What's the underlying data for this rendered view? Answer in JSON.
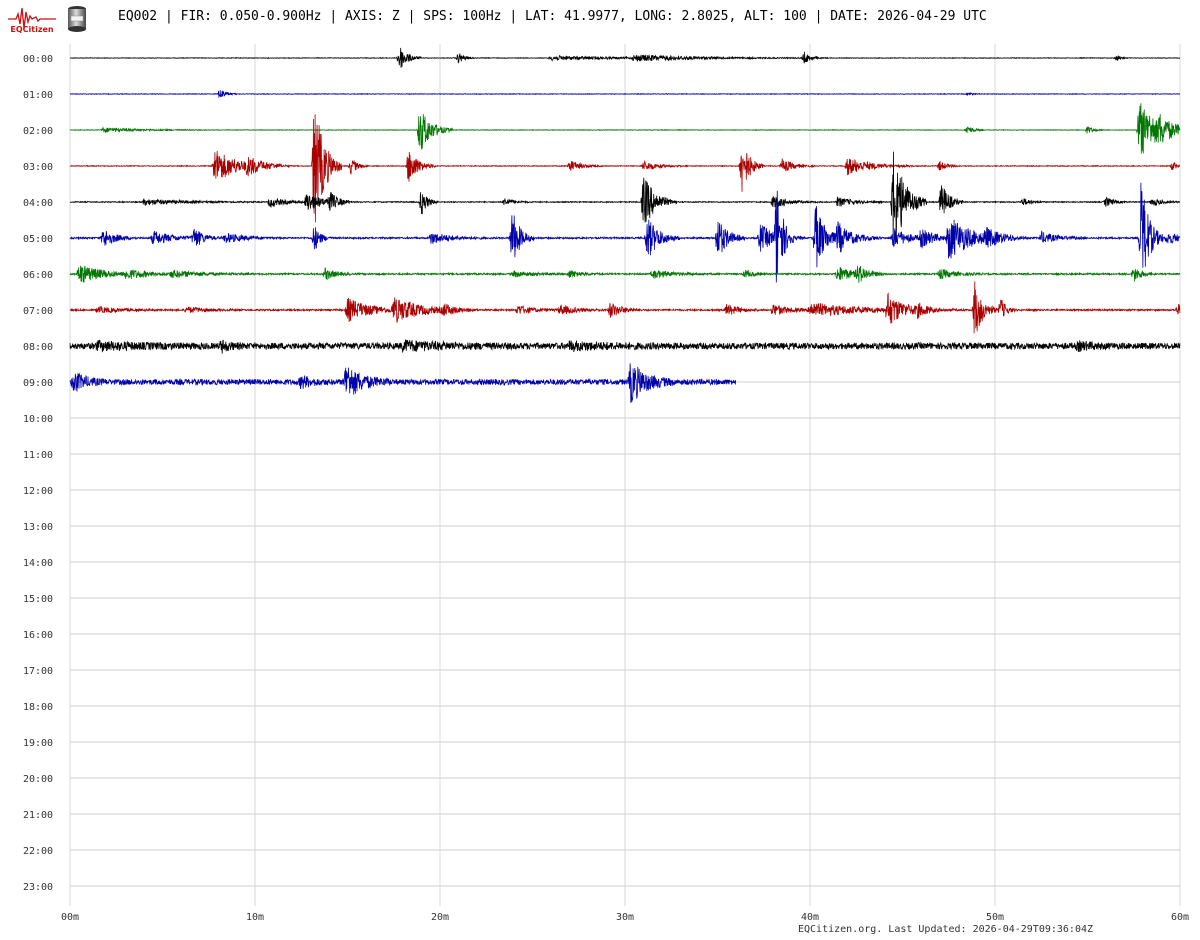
{
  "header": {
    "logo_text": "EQCitizen",
    "title": "EQ002 | FIR: 0.050-0.900Hz | AXIS: Z | SPS: 100Hz | LAT: 41.9977, LONG: 2.8025, ALT: 100 | DATE: 2026-04-29 UTC"
  },
  "footer": {
    "note": "EQCitizen.org. Last Updated: 2026-04-29T09:36:04Z"
  },
  "colors": {
    "background": "#ffffff",
    "grid": "#d8d8d8",
    "baseline": "#cccccc",
    "trace_cycle": [
      "#000000",
      "#0000aa",
      "#007700",
      "#aa0000"
    ],
    "logo": "#cc1111"
  },
  "chart_data": {
    "type": "line",
    "title": "",
    "xlabel": "",
    "ylabel": "",
    "x_unit": "minutes",
    "xlim": [
      0,
      60
    ],
    "x_ticks": [
      0,
      10,
      20,
      30,
      40,
      50,
      60
    ],
    "x_tick_labels": [
      "00m",
      "10m",
      "20m",
      "30m",
      "40m",
      "50m",
      "60m"
    ],
    "rows": [
      "00:00",
      "01:00",
      "02:00",
      "03:00",
      "04:00",
      "05:00",
      "06:00",
      "07:00",
      "08:00",
      "09:00",
      "10:00",
      "11:00",
      "12:00",
      "13:00",
      "14:00",
      "15:00",
      "16:00",
      "17:00",
      "18:00",
      "19:00",
      "20:00",
      "21:00",
      "22:00",
      "23:00"
    ],
    "grid": true,
    "series": [
      {
        "hour": "00:00",
        "color": "#000000",
        "end_minute": 60,
        "noise": 0.3,
        "bursts": [
          {
            "t": 17.8,
            "amp": 14,
            "dur": 0.4
          },
          {
            "t": 21.0,
            "amp": 6,
            "dur": 0.3
          },
          {
            "t": 26,
            "amp": 2.5,
            "dur": 3
          },
          {
            "t": 30.5,
            "amp": 3,
            "dur": 3.5
          },
          {
            "t": 39.7,
            "amp": 6,
            "dur": 0.3
          },
          {
            "t": 56.6,
            "amp": 3,
            "dur": 0.2
          }
        ]
      },
      {
        "hour": "01:00",
        "color": "#0000aa",
        "end_minute": 60,
        "noise": 0.3,
        "bursts": [
          {
            "t": 8.1,
            "amp": 6,
            "dur": 0.3
          },
          {
            "t": 48.6,
            "amp": 2,
            "dur": 0.2
          }
        ]
      },
      {
        "hour": "02:00",
        "color": "#007700",
        "end_minute": 60,
        "noise": 0.3,
        "bursts": [
          {
            "t": 1.8,
            "amp": 2.5,
            "dur": 1.8
          },
          {
            "t": 18.9,
            "amp": 24,
            "dur": 0.6
          },
          {
            "t": 48.5,
            "amp": 5,
            "dur": 0.3
          },
          {
            "t": 55,
            "amp": 4,
            "dur": 0.3
          },
          {
            "t": 57.8,
            "amp": 30,
            "dur": 1
          },
          {
            "t": 58.9,
            "amp": 8,
            "dur": 0.6
          }
        ]
      },
      {
        "hour": "03:00",
        "color": "#aa0000",
        "end_minute": 60,
        "noise": 0.4,
        "bursts": [
          {
            "t": 7.8,
            "amp": 18,
            "dur": 1.2
          },
          {
            "t": 9.6,
            "amp": 7,
            "dur": 0.8
          },
          {
            "t": 13.2,
            "amp": 70,
            "dur": 0.5
          },
          {
            "t": 15.2,
            "amp": 9,
            "dur": 0.3
          },
          {
            "t": 18.3,
            "amp": 18,
            "dur": 0.5
          },
          {
            "t": 27,
            "amp": 6,
            "dur": 0.6
          },
          {
            "t": 31,
            "amp": 5,
            "dur": 0.8
          },
          {
            "t": 36.3,
            "amp": 30,
            "dur": 0.4
          },
          {
            "t": 38.5,
            "amp": 7,
            "dur": 0.6
          },
          {
            "t": 42,
            "amp": 9,
            "dur": 1.2
          },
          {
            "t": 47,
            "amp": 5,
            "dur": 0.4
          },
          {
            "t": 59.6,
            "amp": 5,
            "dur": 0.2
          }
        ]
      },
      {
        "hour": "04:00",
        "color": "#000000",
        "end_minute": 60,
        "noise": 0.5,
        "bursts": [
          {
            "t": 4,
            "amp": 3,
            "dur": 2
          },
          {
            "t": 10.8,
            "amp": 5,
            "dur": 0.8
          },
          {
            "t": 12.8,
            "amp": 10,
            "dur": 0.8
          },
          {
            "t": 14,
            "amp": 10,
            "dur": 0.4
          },
          {
            "t": 19,
            "amp": 14,
            "dur": 0.3
          },
          {
            "t": 23.5,
            "amp": 4,
            "dur": 0.5
          },
          {
            "t": 31,
            "amp": 28,
            "dur": 0.6
          },
          {
            "t": 38,
            "amp": 6,
            "dur": 0.8
          },
          {
            "t": 41.5,
            "amp": 5,
            "dur": 0.8
          },
          {
            "t": 44.5,
            "amp": 55,
            "dur": 0.6
          },
          {
            "t": 47.1,
            "amp": 20,
            "dur": 0.4
          },
          {
            "t": 51.5,
            "amp": 4,
            "dur": 0.4
          },
          {
            "t": 56,
            "amp": 5,
            "dur": 0.4
          },
          {
            "t": 58.5,
            "amp": 4,
            "dur": 0.5
          }
        ]
      },
      {
        "hour": "05:00",
        "color": "#0000aa",
        "end_minute": 60,
        "noise": 0.8,
        "bursts": [
          {
            "t": 1.8,
            "amp": 10,
            "dur": 0.6
          },
          {
            "t": 4.5,
            "amp": 7,
            "dur": 1
          },
          {
            "t": 6.7,
            "amp": 10,
            "dur": 0.5
          },
          {
            "t": 8.4,
            "amp": 5,
            "dur": 1
          },
          {
            "t": 13.2,
            "amp": 14,
            "dur": 0.3
          },
          {
            "t": 19.5,
            "amp": 6,
            "dur": 1
          },
          {
            "t": 23.9,
            "amp": 30,
            "dur": 0.4
          },
          {
            "t": 31.2,
            "amp": 22,
            "dur": 0.6
          },
          {
            "t": 35,
            "amp": 22,
            "dur": 0.5
          },
          {
            "t": 37.3,
            "amp": 14,
            "dur": 0.8
          },
          {
            "t": 38.2,
            "amp": 55,
            "dur": 0.3
          },
          {
            "t": 40.3,
            "amp": 35,
            "dur": 0.5
          },
          {
            "t": 41.5,
            "amp": 14,
            "dur": 0.8
          },
          {
            "t": 44.5,
            "amp": 10,
            "dur": 0.8
          },
          {
            "t": 46,
            "amp": 8,
            "dur": 0.8
          },
          {
            "t": 47.5,
            "amp": 22,
            "dur": 1.2
          },
          {
            "t": 49.5,
            "amp": 7,
            "dur": 0.8
          },
          {
            "t": 52.5,
            "amp": 6,
            "dur": 0.8
          },
          {
            "t": 57.9,
            "amp": 60,
            "dur": 0.4
          },
          {
            "t": 59.3,
            "amp": 6,
            "dur": 0.8
          }
        ]
      },
      {
        "hour": "06:00",
        "color": "#007700",
        "end_minute": 60,
        "noise": 0.8,
        "bursts": [
          {
            "t": 0.5,
            "amp": 10,
            "dur": 1.2
          },
          {
            "t": 3,
            "amp": 4,
            "dur": 1.5
          },
          {
            "t": 5.5,
            "amp": 3,
            "dur": 1.5
          },
          {
            "t": 13.8,
            "amp": 6,
            "dur": 0.5
          },
          {
            "t": 24,
            "amp": 3,
            "dur": 1
          },
          {
            "t": 27,
            "amp": 4,
            "dur": 0.6
          },
          {
            "t": 31.5,
            "amp": 4,
            "dur": 1
          },
          {
            "t": 36.5,
            "amp": 4,
            "dur": 0.4
          },
          {
            "t": 41.5,
            "amp": 8,
            "dur": 0.8
          },
          {
            "t": 42.6,
            "amp": 8,
            "dur": 0.5
          },
          {
            "t": 47,
            "amp": 5,
            "dur": 0.8
          },
          {
            "t": 57.5,
            "amp": 8,
            "dur": 0.4
          }
        ]
      },
      {
        "hour": "07:00",
        "color": "#aa0000",
        "end_minute": 60,
        "noise": 0.8,
        "bursts": [
          {
            "t": 1.5,
            "amp": 3,
            "dur": 1.2
          },
          {
            "t": 6.3,
            "amp": 3,
            "dur": 1
          },
          {
            "t": 15,
            "amp": 12,
            "dur": 1.2
          },
          {
            "t": 17.5,
            "amp": 12,
            "dur": 1.5
          },
          {
            "t": 20.2,
            "amp": 5,
            "dur": 0.5
          },
          {
            "t": 24.2,
            "amp": 5,
            "dur": 0.8
          },
          {
            "t": 26.5,
            "amp": 5,
            "dur": 0.8
          },
          {
            "t": 29.2,
            "amp": 8,
            "dur": 0.6
          },
          {
            "t": 35.5,
            "amp": 6,
            "dur": 0.6
          },
          {
            "t": 38,
            "amp": 6,
            "dur": 0.8
          },
          {
            "t": 40,
            "amp": 7,
            "dur": 2.8
          },
          {
            "t": 44.2,
            "amp": 16,
            "dur": 0.8
          },
          {
            "t": 45.8,
            "amp": 5,
            "dur": 0.5
          },
          {
            "t": 48.9,
            "amp": 30,
            "dur": 0.4
          },
          {
            "t": 50.3,
            "amp": 12,
            "dur": 0.3
          },
          {
            "t": 59.9,
            "amp": 6,
            "dur": 0.3
          }
        ]
      },
      {
        "hour": "08:00",
        "color": "#000000",
        "end_minute": 60,
        "noise": 3.2,
        "bursts": [
          {
            "t": 1.5,
            "amp": 3,
            "dur": 2
          },
          {
            "t": 8.2,
            "amp": 5,
            "dur": 0.4
          },
          {
            "t": 18,
            "amp": 4,
            "dur": 2
          },
          {
            "t": 27,
            "amp": 3,
            "dur": 2
          },
          {
            "t": 54.5,
            "amp": 3,
            "dur": 0.8
          }
        ]
      },
      {
        "hour": "09:00",
        "color": "#0000aa",
        "end_minute": 36,
        "noise": 2.8,
        "bursts": [
          {
            "t": 0.2,
            "amp": 10,
            "dur": 0.6
          },
          {
            "t": 12.5,
            "amp": 6,
            "dur": 0.5
          },
          {
            "t": 14.9,
            "amp": 18,
            "dur": 0.8
          },
          {
            "t": 30.3,
            "amp": 20,
            "dur": 0.8
          }
        ]
      }
    ]
  }
}
